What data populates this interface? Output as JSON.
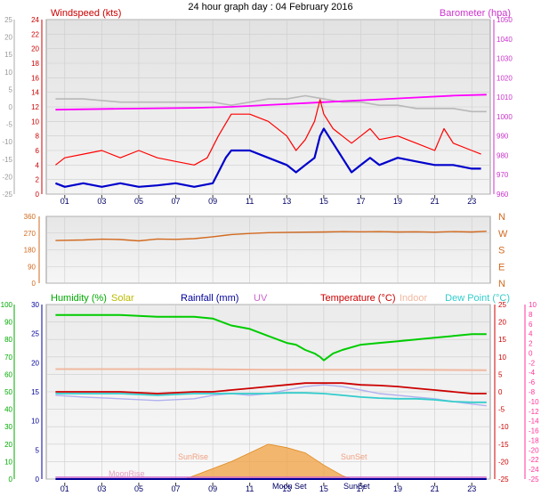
{
  "page_title": "24 hour graph day : 04 February 2016",
  "colors": {
    "windspeed": "#ff0000",
    "windavg": "#0000cc",
    "barometer": "#ff00ff",
    "barometer_label": "#cc33cc",
    "barometer_other": "#b8b8b8",
    "direction": "#d2691e",
    "humidity": "#00cc00",
    "solar": "#cccc00",
    "rainfall": "#000099",
    "uv": "#cc66cc",
    "temperature": "#cc0000",
    "indoor": "#f0b8a0",
    "dewpoint": "#33cccc",
    "sun": "#f0a040",
    "panel_top": "#e8e8e8",
    "panel_bottom": "#f4f4f4",
    "grid": "#cccccc"
  },
  "x_axis": {
    "ticks": [
      1,
      3,
      5,
      7,
      9,
      11,
      13,
      15,
      17,
      19,
      21,
      23
    ],
    "labels": [
      "01",
      "03",
      "05",
      "07",
      "09",
      "11",
      "13",
      "15",
      "17",
      "19",
      "21",
      "23"
    ]
  },
  "chart_data": [
    {
      "type": "line",
      "title": "24 hour graph day : 04 February 2016",
      "left_axis_outer": {
        "ylim": [
          -30,
          25
        ],
        "ticks": [
          "25",
          "20",
          "15",
          "10",
          "5",
          "0",
          "-5",
          "-10",
          "-15",
          "-20",
          "-25"
        ]
      },
      "left_axis_inner": {
        "ylim": [
          0,
          24
        ],
        "ticks": [
          "24",
          "22",
          "20",
          "18",
          "16",
          "14",
          "12",
          "10",
          "8",
          "6",
          "4",
          "2",
          "0"
        ]
      },
      "right_axis": {
        "ylim": [
          957,
          1050
        ],
        "ticks": [
          "1050",
          "1040",
          "1030",
          "1020",
          "1010",
          "1000",
          "990",
          "980",
          "970",
          "960"
        ]
      },
      "series": [
        {
          "name": "Windspeed (kts)",
          "axis": "left_inner",
          "x": [
            0.5,
            1,
            2,
            3,
            4,
            5,
            6,
            7,
            8,
            8.7,
            9.3,
            10,
            11,
            12,
            13,
            13.5,
            14,
            14.5,
            14.8,
            15,
            15.5,
            16,
            16.5,
            17,
            17.5,
            18,
            19,
            20,
            21,
            21.5,
            22,
            23,
            23.5
          ],
          "y": [
            4,
            5,
            5.5,
            6,
            5,
            6,
            5,
            4.5,
            4,
            5,
            8,
            11,
            11,
            10,
            8,
            6,
            7.5,
            10,
            13,
            11,
            9,
            8,
            7,
            8,
            9,
            7.5,
            8,
            7,
            6,
            9,
            7,
            6,
            5.5
          ]
        },
        {
          "name": "Wind average",
          "axis": "left_inner",
          "x": [
            0.5,
            1,
            2,
            3,
            4,
            5,
            6,
            7,
            8,
            9,
            9.3,
            9.7,
            10,
            11,
            12,
            13,
            13.5,
            14,
            14.5,
            14.8,
            15,
            15.5,
            16,
            16.5,
            17,
            17.5,
            18,
            19,
            20,
            21,
            22,
            23,
            23.5
          ],
          "y": [
            1.5,
            1,
            1.5,
            1,
            1.5,
            1,
            1.2,
            1.5,
            1,
            1.5,
            3,
            5,
            6,
            6,
            5,
            4,
            3,
            4,
            5,
            8,
            9,
            7,
            5,
            3,
            4,
            5,
            4,
            5,
            4.5,
            4,
            4,
            3.5,
            3.5
          ]
        },
        {
          "name": "Barometer (hpa)",
          "axis": "right",
          "x": [
            0.5,
            4,
            8,
            10,
            12,
            14,
            16,
            18,
            20,
            22,
            23.8
          ],
          "y": [
            1002,
            1002.5,
            1003,
            1003.5,
            1004.5,
            1005.5,
            1006.5,
            1007.5,
            1008.5,
            1009.5,
            1010
          ]
        },
        {
          "name": "",
          "axis": "left_outer",
          "x": [
            0.5,
            2,
            4,
            6,
            8,
            9,
            10,
            11,
            12,
            13,
            14,
            15,
            16,
            17,
            18,
            19,
            20,
            21,
            22,
            23,
            23.8
          ],
          "y": [
            0,
            0,
            -1,
            -1,
            -1,
            -1,
            -2,
            -1,
            0,
            0,
            1,
            0,
            -1,
            -1,
            -2,
            -2,
            -3,
            -3,
            -3,
            -4,
            -4
          ]
        }
      ]
    },
    {
      "type": "line",
      "left_axis": {
        "ylim": [
          0,
          360
        ],
        "ticks": [
          "360",
          "270",
          "180",
          "90",
          "0"
        ]
      },
      "right_axis": {
        "ticks": [
          "N",
          "W",
          "S",
          "E",
          "N"
        ]
      },
      "series": [
        {
          "name": "",
          "axis": "left",
          "x": [
            0.5,
            2,
            3,
            4,
            5,
            6,
            7,
            8,
            9,
            10,
            11,
            12,
            13,
            14,
            15,
            16,
            17,
            18,
            19,
            20,
            21,
            22,
            23,
            23.8
          ],
          "y": [
            230,
            233,
            237,
            235,
            228,
            238,
            236,
            240,
            250,
            262,
            268,
            272,
            274,
            275,
            276,
            278,
            277,
            278,
            276,
            277,
            275,
            278,
            276,
            280
          ]
        }
      ]
    },
    {
      "type": "line",
      "legend": [
        "Humidity (%)",
        "Solar",
        "Rainfall (mm)",
        "UV",
        "Temperature (°C)",
        "Indoor",
        "Dew Point (°C)"
      ],
      "left_axis_outer": {
        "ylim": [
          0,
          100
        ],
        "ticks": [
          "100",
          "90",
          "80",
          "70",
          "60",
          "50",
          "40",
          "30",
          "20",
          "10",
          "0"
        ]
      },
      "left_axis_inner": {
        "ylim": [
          0,
          30
        ],
        "ticks": [
          "30",
          "25",
          "20",
          "15",
          "10",
          "5",
          "0"
        ]
      },
      "right_axis_inner": {
        "ylim": [
          -25,
          25
        ],
        "ticks": [
          "25",
          "20",
          "15",
          "10",
          "5",
          "0",
          "-5",
          "-10",
          "-15",
          "-20",
          "-25"
        ]
      },
      "right_axis_outer": {
        "ylim": [
          -25,
          10
        ],
        "ticks": [
          "10",
          "8",
          "6",
          "4",
          "2",
          "0",
          "-2",
          "-4",
          "-6",
          "-8",
          "-10",
          "-12",
          "-14",
          "-16",
          "-18",
          "-20",
          "-22",
          "-24",
          "-25"
        ]
      },
      "annotations": [
        "SunRise",
        "SunSet",
        "MoonRise",
        "Moon Set",
        "SunSet"
      ],
      "series": [
        {
          "name": "Humidity (%)",
          "axis": "left_outer",
          "x": [
            0.5,
            2,
            4,
            6,
            8,
            9,
            10,
            11,
            12,
            13,
            13.5,
            14,
            14.5,
            14.8,
            15,
            15.5,
            16,
            17,
            18,
            19,
            20,
            21,
            22,
            23,
            23.8
          ],
          "y": [
            94,
            94,
            94,
            93,
            93,
            92,
            88,
            86,
            82,
            78,
            77,
            74,
            72,
            70,
            68,
            72,
            74,
            77,
            78,
            79,
            80,
            81,
            82,
            83,
            83
          ]
        },
        {
          "name": "Temperature (°C)",
          "axis": "right_inner",
          "x": [
            0.5,
            2,
            4,
            6,
            8,
            9,
            10,
            11,
            12,
            13,
            14,
            15,
            16,
            17,
            18,
            19,
            20,
            21,
            22,
            23,
            23.8
          ],
          "y": [
            0,
            0,
            0,
            -0.5,
            0,
            0,
            0.5,
            1,
            1.5,
            2,
            2.5,
            2.5,
            2.5,
            2,
            1.8,
            1.5,
            1,
            0.5,
            0,
            -0.5,
            -0.5
          ]
        },
        {
          "name": "Indoor",
          "axis": "right_inner",
          "x": [
            0.5,
            4,
            8,
            12,
            16,
            20,
            23.8
          ],
          "y": [
            6.5,
            6.5,
            6.5,
            6.3,
            6.3,
            6.3,
            6.2
          ]
        },
        {
          "name": "Dew Point (°C)",
          "axis": "right_inner",
          "x": [
            0.5,
            2,
            4,
            6,
            8,
            9,
            10,
            11,
            12,
            13,
            14,
            15,
            16,
            17,
            18,
            19,
            20,
            21,
            22,
            23,
            23.8
          ],
          "y": [
            -0.5,
            -0.5,
            -0.5,
            -1,
            -0.5,
            -0.5,
            -0.5,
            -0.5,
            -0.5,
            -0.3,
            -0.3,
            -0.5,
            -1,
            -1.5,
            -1.8,
            -2,
            -2,
            -2.3,
            -2.8,
            -3,
            -3
          ]
        },
        {
          "name": "",
          "axis": "right_inner",
          "x": [
            0.5,
            2,
            4,
            6,
            8,
            9,
            10,
            11,
            12,
            13,
            14,
            15,
            16,
            17,
            18,
            19,
            20,
            21,
            22,
            23,
            23.8
          ],
          "y": [
            -1,
            -1.5,
            -2,
            -2.5,
            -2,
            -1,
            -0.5,
            -1,
            -0.5,
            0.5,
            1.5,
            2,
            1.5,
            0.5,
            -0.5,
            -1,
            -1.5,
            -2,
            -2.8,
            -3.5,
            -4
          ]
        },
        {
          "name": "Solar",
          "axis": "left_outer",
          "x": [
            7.5,
            8,
            9,
            10,
            11,
            12,
            13,
            14,
            15,
            16,
            16.5
          ],
          "y": [
            0,
            2,
            6,
            10,
            15,
            20,
            18,
            15,
            8,
            2,
            0
          ]
        },
        {
          "name": "Rainfall (mm)",
          "axis": "left_inner",
          "x": [
            0.5,
            23.8
          ],
          "y": [
            0,
            0
          ]
        },
        {
          "name": "UV",
          "axis": "left_outer",
          "x": [
            0.5,
            23.8
          ],
          "y": [
            0,
            0
          ]
        }
      ]
    }
  ]
}
